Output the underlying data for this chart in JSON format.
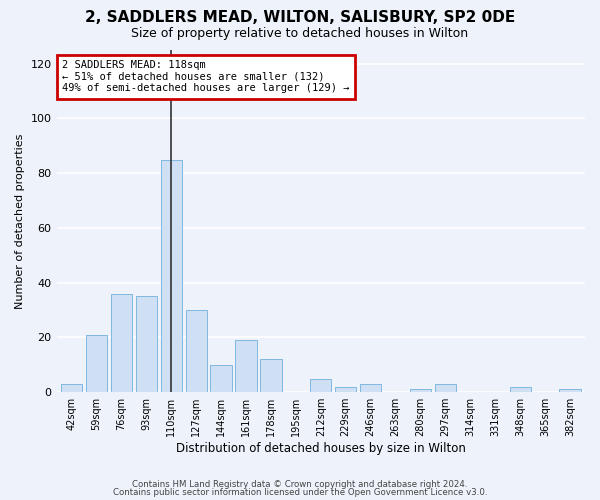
{
  "title": "2, SADDLERS MEAD, WILTON, SALISBURY, SP2 0DE",
  "subtitle": "Size of property relative to detached houses in Wilton",
  "xlabel": "Distribution of detached houses by size in Wilton",
  "ylabel": "Number of detached properties",
  "categories": [
    "42sqm",
    "59sqm",
    "76sqm",
    "93sqm",
    "110sqm",
    "127sqm",
    "144sqm",
    "161sqm",
    "178sqm",
    "195sqm",
    "212sqm",
    "229sqm",
    "246sqm",
    "263sqm",
    "280sqm",
    "297sqm",
    "314sqm",
    "331sqm",
    "348sqm",
    "365sqm",
    "382sqm"
  ],
  "values": [
    3,
    21,
    36,
    35,
    85,
    30,
    10,
    19,
    12,
    0,
    5,
    2,
    3,
    0,
    1,
    3,
    0,
    0,
    2,
    0,
    1
  ],
  "bar_color": "#cfe0f5",
  "bar_edge_color": "#7fb8e0",
  "highlight_index": 4,
  "vline_color": "#333333",
  "annotation_line1": "2 SADDLERS MEAD: 118sqm",
  "annotation_line2": "← 51% of detached houses are smaller (132)",
  "annotation_line3": "49% of semi-detached houses are larger (129) →",
  "annotation_box_color": "#ffffff",
  "annotation_box_edge": "#cc0000",
  "footer_line1": "Contains HM Land Registry data © Crown copyright and database right 2024.",
  "footer_line2": "Contains public sector information licensed under the Open Government Licence v3.0.",
  "ylim": [
    0,
    125
  ],
  "yticks": [
    0,
    20,
    40,
    60,
    80,
    100,
    120
  ],
  "background_color": "#eef3fb",
  "grid_color": "#ffffff",
  "title_fontsize": 11,
  "subtitle_fontsize": 9
}
